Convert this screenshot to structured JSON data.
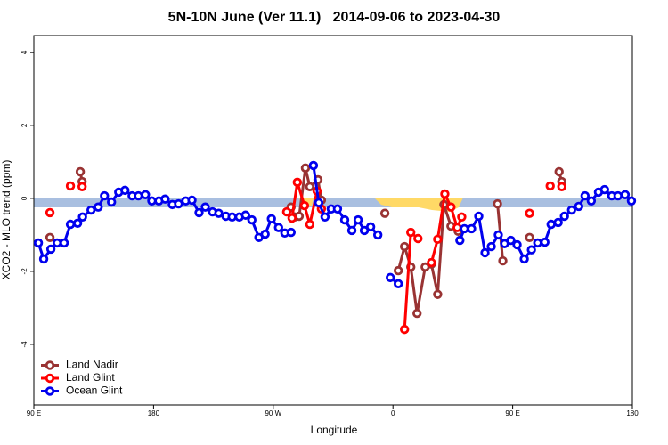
{
  "chart_data": {
    "type": "line",
    "title": "5N-10N June (Ver 11.1)   2014-09-06 to 2023-04-30",
    "x_label": "Longitude",
    "y_label": "XCO2 - MLO trend (ppm)",
    "xlim": [
      90,
      540
    ],
    "xticks": [
      {
        "value": 90,
        "label": "90 E"
      },
      {
        "value": 180,
        "label": "180"
      },
      {
        "value": 270,
        "label": "90 W"
      },
      {
        "value": 360,
        "label": "0"
      },
      {
        "value": 450,
        "label": "90 E"
      },
      {
        "value": 540,
        "label": "180"
      }
    ],
    "ylim": [
      -5.66,
      4.46
    ],
    "yticks": [
      -4,
      -2,
      0,
      2,
      4
    ],
    "legend": "bottom-left",
    "series": [
      {
        "name": "Land Nadir",
        "color": "#993333",
        "x": [
          102.1,
          null,
          124.9,
          126.3,
          null,
          283.4,
          286.1,
          289.5,
          294.2,
          297.5,
          303.6,
          306.2,
          null,
          353.9,
          null,
          364.0,
          368.7,
          373.4,
          378.1,
          384.2,
          388.9,
          393.6,
          398.3,
          403.6,
          409.0,
          null,
          438.6,
          442.6,
          null,
          462.7,
          null,
          484.9,
          486.9
        ],
        "values": [
          -1.07,
          null,
          0.73,
          0.46,
          null,
          -0.24,
          -0.51,
          -0.49,
          0.83,
          0.32,
          0.51,
          -0.05,
          null,
          -0.41,
          null,
          -1.98,
          -1.32,
          -1.88,
          -3.15,
          -1.88,
          -1.8,
          -2.63,
          -0.17,
          -0.76,
          -0.9,
          null,
          -0.15,
          -1.71,
          null,
          -1.07,
          null,
          0.73,
          0.46
        ]
      },
      {
        "name": "Land Glint",
        "color": "#ff0000",
        "x": [
          102.1,
          null,
          117.5,
          null,
          126.3,
          null,
          280.1,
          284.1,
          288.1,
          293.5,
          297.5,
          302.9,
          306.2,
          null,
          368.7,
          373.4,
          378.8,
          null,
          388.9,
          393.6,
          399.0,
          403.6,
          408.3,
          411.7,
          null,
          462.7,
          null,
          478.2,
          null,
          486.9
        ],
        "values": [
          -0.39,
          null,
          0.34,
          null,
          0.32,
          null,
          -0.37,
          -0.54,
          0.44,
          -0.2,
          -0.71,
          0.2,
          -0.29,
          null,
          -3.59,
          -0.93,
          -1.1,
          null,
          -1.76,
          -1.12,
          0.12,
          -0.24,
          -0.8,
          -0.51,
          null,
          -0.41,
          null,
          0.34,
          null,
          0.32
        ]
      },
      {
        "name": "Ocean Glint",
        "color": "#0000ee",
        "x": [
          93.4,
          97.4,
          102.8,
          107.5,
          112.8,
          117.5,
          122.9,
          126.6,
          133.0,
          138.4,
          143.1,
          148.4,
          153.8,
          158.5,
          163.9,
          168.6,
          173.9,
          178.7,
          184.0,
          188.7,
          194.1,
          198.8,
          204.2,
          208.9,
          214.2,
          218.9,
          224.3,
          229.0,
          234.4,
          239.1,
          244.5,
          249.2,
          253.9,
          259.2,
          263.9,
          268.6,
          274.0,
          278.7,
          283.4,
          null,
          300.2,
          304.2,
          308.9,
          313.6,
          318.3,
          323.7,
          329.1,
          333.8,
          338.5,
          343.2,
          348.6,
          null,
          358.0,
          364.0,
          null,
          410.3,
          413.7,
          419.1,
          424.5,
          429.2,
          433.9,
          439.2,
          443.9,
          448.6,
          453.3,
          458.7,
          464.1,
          468.8,
          474.2,
          478.9,
          484.2,
          488.9,
          494.3,
          499.7,
          504.4,
          509.1,
          514.5,
          519.1,
          524.5,
          529.2,
          534.6,
          539.3
        ],
        "values": [
          -1.22,
          -1.66,
          -1.39,
          -1.22,
          -1.22,
          -0.71,
          -0.68,
          -0.51,
          -0.32,
          -0.24,
          0.07,
          -0.1,
          0.17,
          0.22,
          0.07,
          0.07,
          0.1,
          -0.07,
          -0.07,
          -0.02,
          -0.17,
          -0.15,
          -0.07,
          -0.05,
          -0.39,
          -0.24,
          -0.37,
          -0.41,
          -0.49,
          -0.51,
          -0.51,
          -0.46,
          -0.59,
          -1.07,
          -0.98,
          -0.56,
          -0.8,
          -0.95,
          -0.93,
          null,
          0.9,
          -0.12,
          -0.51,
          -0.29,
          -0.29,
          -0.59,
          -0.88,
          -0.59,
          -0.88,
          -0.78,
          -1.0,
          null,
          -2.17,
          -2.34,
          null,
          -1.15,
          -0.83,
          -0.83,
          -0.49,
          -1.49,
          -1.32,
          -1.0,
          -1.24,
          -1.15,
          -1.27,
          -1.66,
          -1.41,
          -1.22,
          -1.2,
          -0.71,
          -0.66,
          -0.49,
          -0.32,
          -0.22,
          0.07,
          -0.07,
          0.17,
          0.24,
          0.07,
          0.07,
          0.1,
          -0.07
        ]
      }
    ]
  }
}
